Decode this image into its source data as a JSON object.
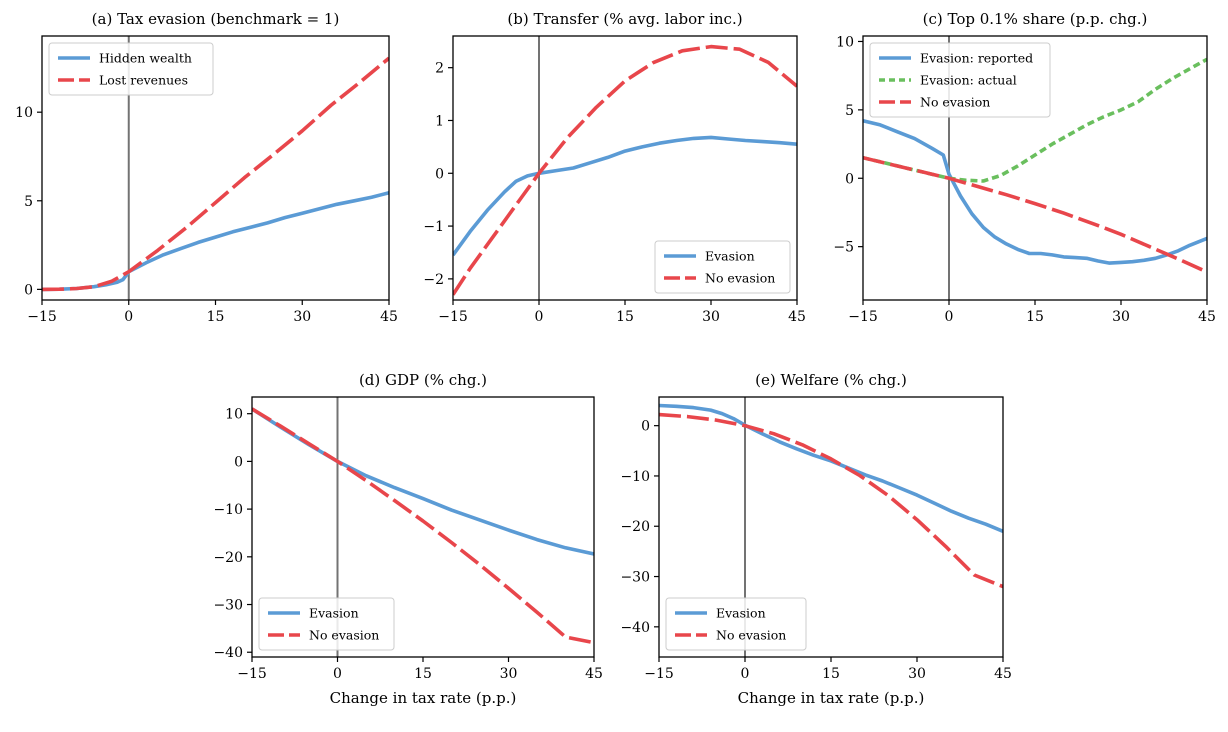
{
  "colors": {
    "blue": "#5b9bd5",
    "red": "#e8464b",
    "green": "#6abf5e",
    "zero_line": "#737373"
  },
  "chart_data": [
    {
      "type": "line",
      "title": "(a) Tax evasion (benchmark = 1)",
      "xlabel": "",
      "ylabel": "",
      "xlim": [
        -15,
        45
      ],
      "ylim": [
        -0.6,
        14.3
      ],
      "xticks": [
        -15,
        0,
        15,
        30,
        45
      ],
      "xtick_labels": [
        "−15",
        "0",
        "15",
        "30",
        "45"
      ],
      "yticks": [
        0,
        5,
        10
      ],
      "ytick_labels": [
        "0",
        "5",
        "10"
      ],
      "legend_position": "top-left",
      "series": [
        {
          "name": "Hidden wealth",
          "color": "blue",
          "style": "solid",
          "x": [
            -15,
            -12,
            -9,
            -6,
            -4,
            -2,
            -1,
            0,
            3,
            6,
            9,
            12,
            15,
            18,
            21,
            24,
            27,
            30,
            33,
            36,
            39,
            42,
            45
          ],
          "y": [
            0,
            0.01,
            0.05,
            0.15,
            0.25,
            0.4,
            0.55,
            1.0,
            1.5,
            1.95,
            2.3,
            2.65,
            2.95,
            3.25,
            3.5,
            3.75,
            4.05,
            4.3,
            4.55,
            4.8,
            5.0,
            5.2,
            5.45
          ]
        },
        {
          "name": "Lost revenues",
          "color": "red",
          "style": "dashed",
          "x": [
            -15,
            -12,
            -9,
            -6,
            -3,
            0,
            5,
            10,
            15,
            20,
            25,
            30,
            35,
            40,
            45
          ],
          "y": [
            0,
            0.01,
            0.05,
            0.15,
            0.45,
            1.0,
            2.2,
            3.5,
            4.9,
            6.3,
            7.6,
            8.95,
            10.4,
            11.7,
            13.05
          ]
        }
      ]
    },
    {
      "type": "line",
      "title": "(b) Transfer (% avg. labor inc.)",
      "xlabel": "",
      "ylabel": "",
      "xlim": [
        -15,
        45
      ],
      "ylim": [
        -2.4,
        2.6
      ],
      "xticks": [
        -15,
        0,
        15,
        30,
        45
      ],
      "xtick_labels": [
        "−15",
        "0",
        "15",
        "30",
        "45"
      ],
      "yticks": [
        -2,
        -1,
        0,
        1,
        2
      ],
      "ytick_labels": [
        "−2",
        "−1",
        "0",
        "1",
        "2"
      ],
      "legend_position": "bottom-right",
      "series": [
        {
          "name": "Evasion",
          "color": "blue",
          "style": "solid",
          "x": [
            -15,
            -12,
            -9,
            -6,
            -4,
            -2,
            0,
            3,
            6,
            9,
            12,
            15,
            18,
            21,
            24,
            27,
            30,
            33,
            36,
            39,
            42,
            45
          ],
          "y": [
            -1.55,
            -1.1,
            -0.7,
            -0.35,
            -0.15,
            -0.05,
            0.0,
            0.05,
            0.1,
            0.2,
            0.3,
            0.42,
            0.5,
            0.57,
            0.62,
            0.66,
            0.68,
            0.65,
            0.62,
            0.6,
            0.58,
            0.55
          ]
        },
        {
          "name": "No evasion",
          "color": "red",
          "style": "dashed",
          "x": [
            -15,
            -12,
            -9,
            -6,
            -3,
            0,
            5,
            10,
            15,
            20,
            25,
            30,
            35,
            40,
            45
          ],
          "y": [
            -2.3,
            -1.8,
            -1.35,
            -0.9,
            -0.45,
            0.0,
            0.68,
            1.25,
            1.75,
            2.1,
            2.32,
            2.4,
            2.35,
            2.1,
            1.65
          ]
        }
      ]
    },
    {
      "type": "line",
      "title": "(c) Top 0.1% share (p.p. chg.)",
      "xlabel": "",
      "ylabel": "",
      "xlim": [
        -15,
        45
      ],
      "ylim": [
        -8.9,
        10.4
      ],
      "xticks": [
        -15,
        0,
        15,
        30,
        45
      ],
      "xtick_labels": [
        "−15",
        "0",
        "15",
        "30",
        "45"
      ],
      "yticks": [
        -5,
        0,
        5,
        10
      ],
      "ytick_labels": [
        "−5",
        "0",
        "5",
        "10"
      ],
      "legend_position": "top-left",
      "series": [
        {
          "name": "Evasion: reported",
          "color": "blue",
          "style": "solid",
          "x": [
            -15,
            -12,
            -9,
            -6,
            -3,
            -1,
            0,
            2,
            4,
            6,
            8,
            10,
            12,
            14,
            16,
            18,
            20,
            22,
            24,
            26,
            28,
            30,
            32,
            34,
            36,
            38,
            40,
            42,
            45
          ],
          "y": [
            4.2,
            3.9,
            3.4,
            2.9,
            2.2,
            1.7,
            0.3,
            -1.3,
            -2.6,
            -3.6,
            -4.3,
            -4.8,
            -5.2,
            -5.5,
            -5.5,
            -5.6,
            -5.75,
            -5.8,
            -5.85,
            -6.05,
            -6.2,
            -6.15,
            -6.1,
            -6.0,
            -5.85,
            -5.6,
            -5.3,
            -4.9,
            -4.4
          ]
        },
        {
          "name": "Evasion: actual",
          "color": "green",
          "style": "dotted",
          "x": [
            -15,
            -12,
            -9,
            -6,
            -3,
            0,
            3,
            6,
            9,
            12,
            15,
            18,
            21,
            24,
            27,
            30,
            33,
            36,
            39,
            42,
            45
          ],
          "y": [
            1.5,
            1.2,
            0.9,
            0.6,
            0.3,
            0.0,
            -0.15,
            -0.2,
            0.2,
            0.9,
            1.7,
            2.5,
            3.2,
            3.9,
            4.5,
            5.0,
            5.6,
            6.5,
            7.3,
            8.0,
            8.7
          ]
        },
        {
          "name": "No evasion",
          "color": "red",
          "style": "dashed",
          "x": [
            -15,
            -10,
            -5,
            0,
            5,
            10,
            15,
            20,
            25,
            30,
            35,
            40,
            45
          ],
          "y": [
            1.5,
            1.0,
            0.5,
            0.0,
            -0.6,
            -1.2,
            -1.85,
            -2.55,
            -3.3,
            -4.1,
            -5.0,
            -5.9,
            -6.85
          ]
        }
      ]
    },
    {
      "type": "line",
      "title": "(d) GDP (% chg.)",
      "xlabel": "Change in tax rate (p.p.)",
      "ylabel": "",
      "xlim": [
        -15,
        45
      ],
      "ylim": [
        -41,
        13.5
      ],
      "xticks": [
        -15,
        0,
        15,
        30,
        45
      ],
      "xtick_labels": [
        "−15",
        "0",
        "15",
        "30",
        "45"
      ],
      "yticks": [
        -40,
        -30,
        -20,
        -10,
        0,
        10
      ],
      "ytick_labels": [
        "−40",
        "−30",
        "−20",
        "−10",
        "0",
        "10"
      ],
      "legend_position": "bottom-left",
      "series": [
        {
          "name": "Evasion",
          "color": "blue",
          "style": "solid",
          "x": [
            -15,
            -10,
            -5,
            0,
            5,
            10,
            15,
            20,
            25,
            30,
            35,
            40,
            45
          ],
          "y": [
            11,
            7.2,
            3.5,
            0,
            -3,
            -5.5,
            -7.8,
            -10.2,
            -12.3,
            -14.4,
            -16.4,
            -18.1,
            -19.4
          ]
        },
        {
          "name": "No evasion",
          "color": "red",
          "style": "dashed",
          "x": [
            -15,
            -10,
            -5,
            0,
            5,
            10,
            15,
            20,
            25,
            30,
            35,
            40,
            45
          ],
          "y": [
            11,
            7.4,
            3.7,
            0,
            -4,
            -8.2,
            -12.5,
            -17,
            -21.7,
            -26.6,
            -31.6,
            -36.8,
            -38
          ]
        }
      ]
    },
    {
      "type": "line",
      "title": "(e) Welfare (% chg.)",
      "xlabel": "Change in tax rate (p.p.)",
      "ylabel": "",
      "xlim": [
        -15,
        45
      ],
      "ylim": [
        -46,
        5.7
      ],
      "xticks": [
        -15,
        0,
        15,
        30,
        45
      ],
      "xtick_labels": [
        "−15",
        "0",
        "15",
        "30",
        "45"
      ],
      "yticks": [
        -40,
        -30,
        -20,
        -10,
        0
      ],
      "ytick_labels": [
        "−40",
        "−30",
        "−20",
        "−10",
        "0"
      ],
      "legend_position": "bottom-left",
      "series": [
        {
          "name": "Evasion",
          "color": "blue",
          "style": "solid",
          "x": [
            -15,
            -12,
            -9,
            -6,
            -4,
            -2,
            0,
            3,
            6,
            9,
            12,
            15,
            18,
            21,
            24,
            27,
            30,
            33,
            36,
            39,
            42,
            45
          ],
          "y": [
            4.0,
            3.85,
            3.6,
            3.1,
            2.4,
            1.4,
            0.1,
            -1.6,
            -3.2,
            -4.6,
            -5.9,
            -7.0,
            -8.4,
            -9.8,
            -11.0,
            -12.4,
            -13.8,
            -15.4,
            -17.0,
            -18.4,
            -19.6,
            -21.0
          ]
        },
        {
          "name": "No evasion",
          "color": "red",
          "style": "dashed",
          "x": [
            -15,
            -10,
            -5,
            0,
            5,
            10,
            15,
            20,
            25,
            30,
            35,
            40,
            45
          ],
          "y": [
            2.2,
            1.8,
            1.1,
            0.0,
            -1.6,
            -3.8,
            -6.6,
            -9.9,
            -13.9,
            -18.7,
            -24.0,
            -29.7,
            -32.0
          ]
        }
      ]
    }
  ]
}
